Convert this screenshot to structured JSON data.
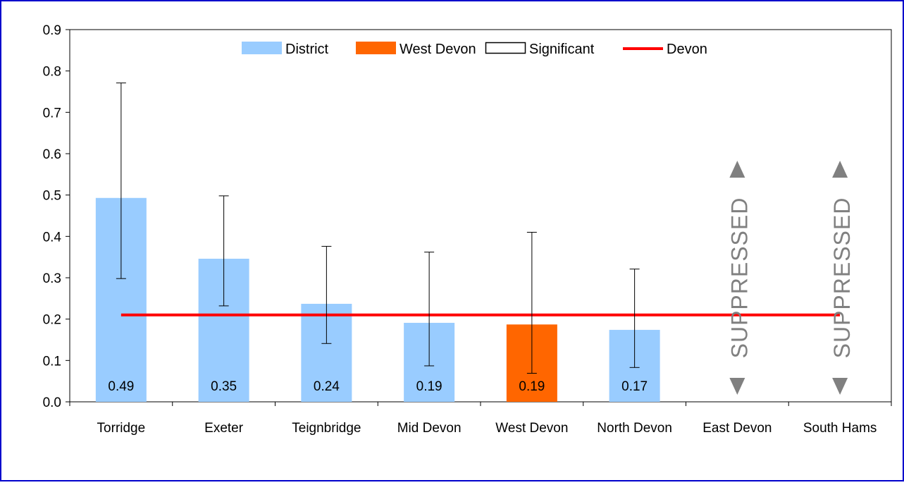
{
  "chart_data": {
    "type": "bar",
    "categories": [
      "Torridge",
      "Exeter",
      "Teignbridge",
      "Mid Devon",
      "West Devon",
      "North Devon",
      "East Devon",
      "South Hams"
    ],
    "values": [
      0.493,
      0.346,
      0.237,
      0.191,
      0.187,
      0.174,
      null,
      null
    ],
    "data_labels": [
      "0.49",
      "0.35",
      "0.24",
      "0.19",
      "0.19",
      "0.17",
      "",
      ""
    ],
    "error_bars": [
      {
        "low": 0.298,
        "high": 0.771
      },
      {
        "low": 0.232,
        "high": 0.498
      },
      {
        "low": 0.141,
        "high": 0.376
      },
      {
        "low": 0.087,
        "high": 0.362
      },
      {
        "low": 0.069,
        "high": 0.41
      },
      {
        "low": 0.083,
        "high": 0.321
      },
      null,
      null
    ],
    "suppressed": [
      false,
      false,
      false,
      false,
      false,
      false,
      true,
      true
    ],
    "suppressed_label": "SUPPRESSED",
    "highlight_index": 4,
    "reference_line": {
      "name": "Devon",
      "value": 0.21
    },
    "ylim": [
      0,
      0.9
    ],
    "yticks": [
      "0.0",
      "0.1",
      "0.2",
      "0.3",
      "0.4",
      "0.5",
      "0.6",
      "0.7",
      "0.8",
      "0.9"
    ],
    "legend": [
      {
        "label": "District",
        "kind": "bar",
        "color": "#99ccff"
      },
      {
        "label": "West Devon",
        "kind": "bar",
        "color": "#ff6600"
      },
      {
        "label": "Significant",
        "kind": "outline",
        "color": "#000000"
      },
      {
        "label": "Devon",
        "kind": "line",
        "color": "#ff0000"
      }
    ],
    "legend_position": "top-center",
    "title": "",
    "xlabel": "",
    "ylabel": "",
    "colors": {
      "district": "#99ccff",
      "highlight": "#ff6600",
      "reference": "#ff0000",
      "suppressed": "#808080",
      "frame": "#0000cc"
    }
  }
}
